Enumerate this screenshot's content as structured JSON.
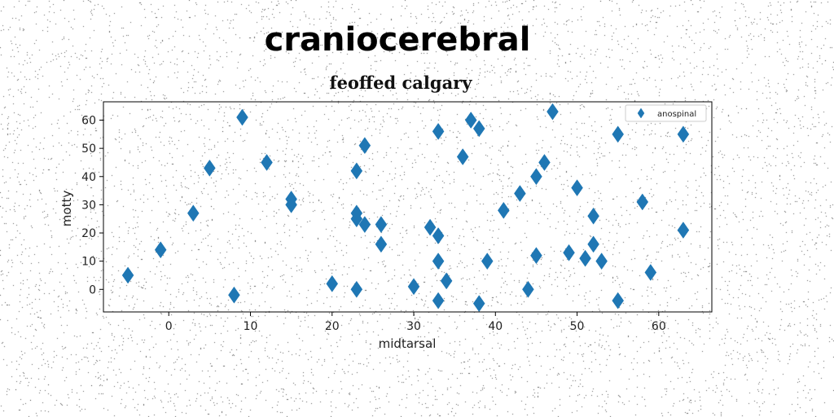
{
  "header": {
    "title": "craniocerebral",
    "subtitle": "feoffed calgary"
  },
  "chart_data": {
    "type": "scatter",
    "title": "feoffed calgary",
    "xlabel": "midtarsal",
    "ylabel": "motty",
    "xlim": [
      -8,
      66.5
    ],
    "ylim": [
      -8,
      66.5
    ],
    "xticks": [
      0,
      10,
      20,
      30,
      40,
      50,
      60
    ],
    "yticks": [
      0,
      10,
      20,
      30,
      40,
      50,
      60
    ],
    "grid": false,
    "legend_position": "top-right",
    "marker": "thin-diamond",
    "color": "#1f77b4",
    "series": [
      {
        "name": "anospinal",
        "points": [
          [
            -5,
            5
          ],
          [
            -1,
            14
          ],
          [
            3,
            27
          ],
          [
            5,
            43
          ],
          [
            8,
            -2
          ],
          [
            9,
            61
          ],
          [
            12,
            45
          ],
          [
            15,
            32
          ],
          [
            15,
            30
          ],
          [
            20,
            2
          ],
          [
            23,
            0
          ],
          [
            23,
            42
          ],
          [
            23,
            27
          ],
          [
            23,
            25
          ],
          [
            24,
            23
          ],
          [
            24,
            51
          ],
          [
            26,
            23
          ],
          [
            26,
            16
          ],
          [
            30,
            1
          ],
          [
            32,
            22
          ],
          [
            33,
            19
          ],
          [
            33,
            10
          ],
          [
            33,
            -4
          ],
          [
            33,
            56
          ],
          [
            34,
            3
          ],
          [
            36,
            47
          ],
          [
            37,
            60
          ],
          [
            38,
            57
          ],
          [
            38,
            -5
          ],
          [
            39,
            10
          ],
          [
            41,
            28
          ],
          [
            43,
            34
          ],
          [
            44,
            0
          ],
          [
            45,
            12
          ],
          [
            45,
            40
          ],
          [
            46,
            45
          ],
          [
            47,
            63
          ],
          [
            49,
            13
          ],
          [
            50,
            36
          ],
          [
            51,
            11
          ],
          [
            52,
            26
          ],
          [
            52,
            16
          ],
          [
            53,
            10
          ],
          [
            55,
            55
          ],
          [
            55,
            -4
          ],
          [
            58,
            31
          ],
          [
            59,
            6
          ],
          [
            63,
            55
          ],
          [
            63,
            21
          ]
        ]
      }
    ]
  }
}
